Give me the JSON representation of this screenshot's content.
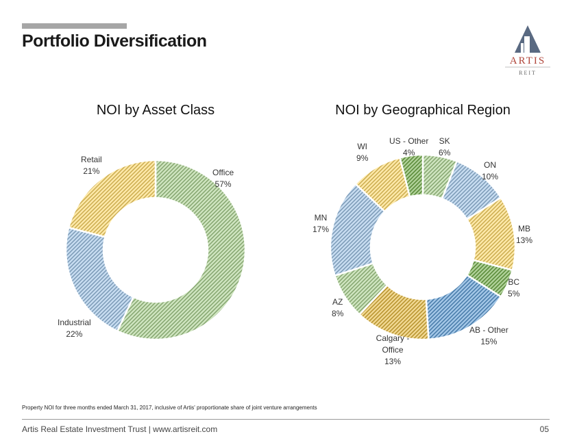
{
  "header": {
    "title": "Portfolio Diversification"
  },
  "logo": {
    "name": "ARTIS",
    "sub": "REIT"
  },
  "chart_data": [
    {
      "type": "pie",
      "title": "NOI by Asset Class",
      "unit": "%",
      "categories": [
        "Office",
        "Industrial",
        "Retail"
      ],
      "values": [
        57,
        22,
        21
      ],
      "colors": [
        "#a9d18e",
        "#9dc3e6",
        "#ffd966"
      ]
    },
    {
      "type": "pie",
      "title": "NOI by Geographical Region",
      "unit": "%",
      "categories": [
        "SK",
        "ON",
        "MB",
        "BC",
        "AB - Other",
        "Calgary - Office",
        "AZ",
        "MN",
        "WI",
        "US - Other"
      ],
      "values": [
        6,
        10,
        13,
        5,
        15,
        13,
        8,
        17,
        9,
        4
      ],
      "colors": [
        "#a9d18e",
        "#9dc3e6",
        "#ffd966",
        "#70ad47",
        "#5b9bd5",
        "#e6b93c",
        "#a9d18e",
        "#9dc3e6",
        "#ffd966",
        "#70ad47"
      ]
    }
  ],
  "footnote": "Property NOI for three months ended March 31, 2017, inclusive of Artis' proportionate share of joint venture arrangements",
  "footer": {
    "text": "Artis Real Estate Investment Trust | www.artisreit.com",
    "page": "05"
  }
}
